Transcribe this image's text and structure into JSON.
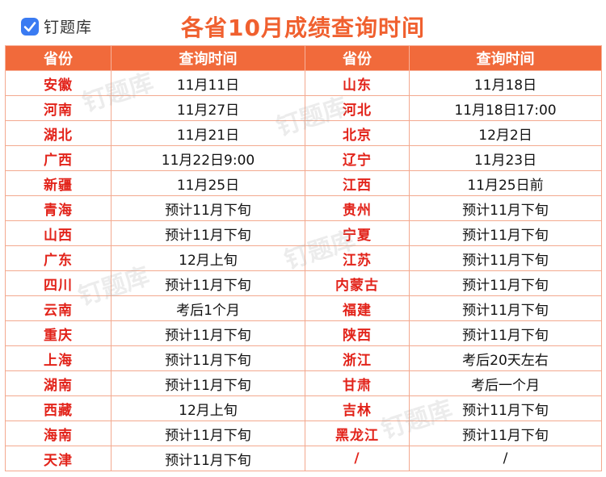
{
  "logo": {
    "text": "钉题库",
    "icon": "checkmark-logo-icon",
    "color": "#3a7bf2"
  },
  "title": "各省10月成绩查询时间",
  "headers": [
    "省份",
    "查询时间",
    "省份",
    "查询时间"
  ],
  "rows": [
    [
      "安徽",
      "11月11日",
      "山东",
      "11月18日"
    ],
    [
      "河南",
      "11月27日",
      "河北",
      "11月18日17:00"
    ],
    [
      "湖北",
      "11月21日",
      "北京",
      "12月2日"
    ],
    [
      "广西",
      "11月22日9:00",
      "辽宁",
      "11月23日"
    ],
    [
      "新疆",
      "11月25日",
      "江西",
      "11月25日前"
    ],
    [
      "青海",
      "预计11月下旬",
      "贵州",
      "预计11月下旬"
    ],
    [
      "山西",
      "预计11月下旬",
      "宁夏",
      "预计11月下旬"
    ],
    [
      "广东",
      "12月上旬",
      "江苏",
      "预计11月下旬"
    ],
    [
      "四川",
      "预计11月下旬",
      "内蒙古",
      "预计11月下旬"
    ],
    [
      "云南",
      "考后1个月",
      "福建",
      "预计11月下旬"
    ],
    [
      "重庆",
      "预计11月下旬",
      "陕西",
      "预计11月下旬"
    ],
    [
      "上海",
      "预计11月下旬",
      "浙江",
      "考后20天左右"
    ],
    [
      "湖南",
      "预计11月下旬",
      "甘肃",
      "考后一个月"
    ],
    [
      "西藏",
      "12月上旬",
      "吉林",
      "预计11月下旬"
    ],
    [
      "海南",
      "预计11月下旬",
      "黑龙江",
      "预计11月下旬"
    ],
    [
      "天津",
      "预计11月下旬",
      "/",
      "/"
    ]
  ],
  "colors": {
    "title": "#f0602f",
    "header_bg": "#f16a3b",
    "province": "#e2231a",
    "border": "#f3a98f"
  },
  "watermarks": [
    "钉题库",
    "钉题库",
    "钉题库",
    "钉题库",
    "钉题库"
  ]
}
